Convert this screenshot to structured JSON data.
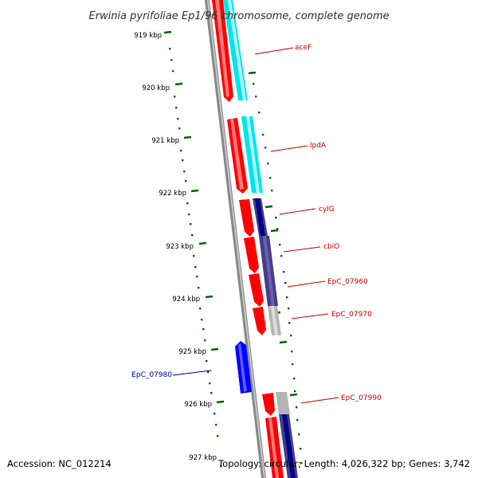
{
  "title": "Erwinia pyrifoliae Ep1/96 chromosome, complete genome",
  "accession": "Accession: NC_012214",
  "topology": "Topology: circular; Length: 4,026,322 bp; Genes: 3,742",
  "scale_labels": [
    "919 kbp",
    "920 kbp",
    "921 kbp",
    "922 kbp",
    "923 kbp",
    "924 kbp",
    "925 kbp",
    "926 kbp",
    "927 kbp"
  ],
  "genes": [
    {
      "name": "aceF",
      "strand": "forward"
    },
    {
      "name": "lpdA",
      "strand": "forward"
    },
    {
      "name": "cylG",
      "strand": "forward"
    },
    {
      "name": "cbiO",
      "strand": "forward"
    },
    {
      "name": "EpC_07960",
      "strand": "forward"
    },
    {
      "name": "EpC_07970",
      "strand": "forward"
    },
    {
      "name": "EpC_07980",
      "strand": "reverse"
    },
    {
      "name": "EpC_07990",
      "strand": "forward"
    }
  ],
  "colors": {
    "forward_gene": "#ff0000",
    "reverse_gene": "#0000ff",
    "label_forward": "#cc0000",
    "label_reverse": "#0000aa",
    "backbone": "#888888",
    "ticks": "#006600",
    "cds_cyan": "#00e5ee",
    "cds_navy": "#00008b",
    "cds_slate": "#483d8b",
    "cds_gray": "#b4b4b4"
  }
}
